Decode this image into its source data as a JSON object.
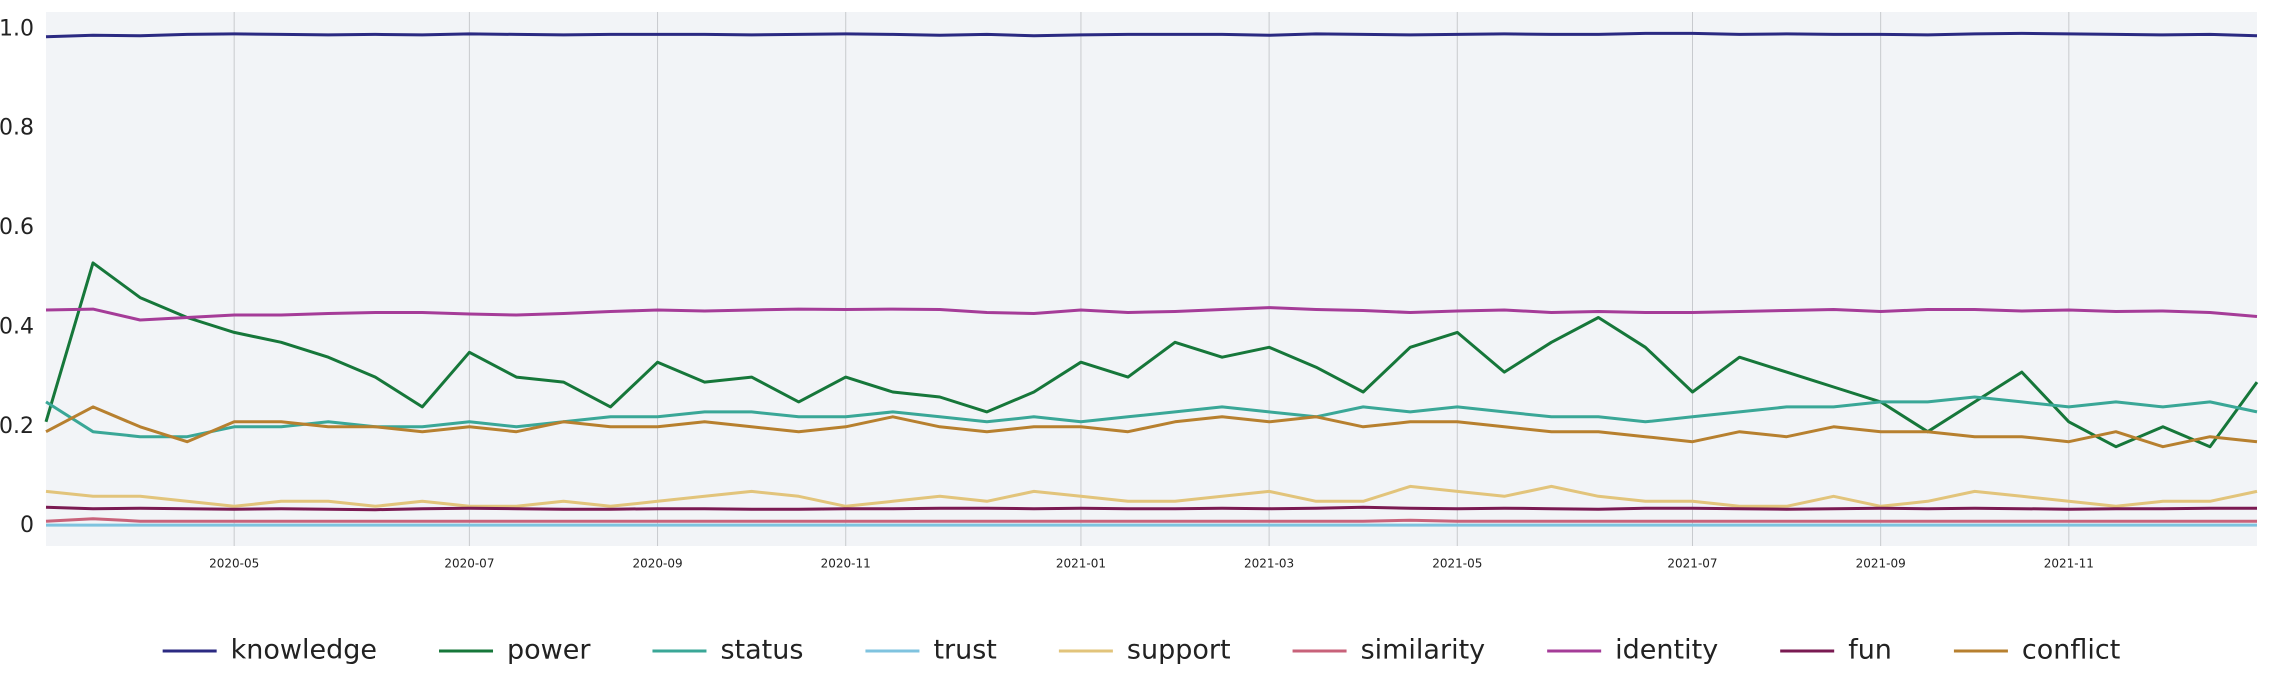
{
  "chart_data": {
    "type": "line",
    "categories": [
      null,
      null,
      null,
      null,
      "2020-05",
      null,
      null,
      null,
      null,
      "2020-07",
      null,
      null,
      null,
      "2020-09",
      null,
      null,
      null,
      "2020-11",
      null,
      null,
      null,
      null,
      "2021-01",
      null,
      null,
      null,
      "2021-03",
      null,
      null,
      null,
      "2021-05",
      null,
      null,
      null,
      null,
      "2021-07",
      null,
      null,
      null,
      "2021-09",
      null,
      null,
      null,
      "2021-11",
      null,
      null,
      null,
      null
    ],
    "ylim": [
      -0.04,
      1.035
    ],
    "yticks": [
      0,
      0.2,
      0.4,
      0.6,
      0.8,
      {
        "value": 1,
        "label": "1.0"
      }
    ],
    "grid": true,
    "legend": "bottom",
    "series": [
      {
        "name": "knowledge",
        "color": "#2b2a82",
        "values": [
          0.985,
          0.988,
          0.987,
          0.99,
          0.991,
          0.99,
          0.989,
          0.99,
          0.989,
          0.991,
          0.99,
          0.989,
          0.99,
          0.99,
          0.99,
          0.989,
          0.99,
          0.991,
          0.99,
          0.988,
          0.99,
          0.987,
          0.989,
          0.99,
          0.99,
          0.99,
          0.988,
          0.991,
          0.99,
          0.989,
          0.99,
          0.991,
          0.99,
          0.99,
          0.992,
          0.992,
          0.99,
          0.991,
          0.99,
          0.99,
          0.989,
          0.991,
          0.992,
          0.991,
          0.99,
          0.989,
          0.99,
          0.987
        ]
      },
      {
        "name": "power",
        "color": "#16773a",
        "values": [
          0.21,
          0.53,
          0.46,
          0.42,
          0.39,
          0.37,
          0.34,
          0.3,
          0.24,
          0.35,
          0.3,
          0.29,
          0.24,
          0.33,
          0.29,
          0.3,
          0.25,
          0.3,
          0.27,
          0.26,
          0.23,
          0.27,
          0.33,
          0.3,
          0.37,
          0.34,
          0.36,
          0.32,
          0.27,
          0.36,
          0.39,
          0.31,
          0.37,
          0.42,
          0.36,
          0.27,
          0.34,
          0.31,
          0.28,
          0.25,
          0.19,
          0.25,
          0.31,
          0.21,
          0.16,
          0.2,
          0.16,
          0.29
        ]
      },
      {
        "name": "status",
        "color": "#3aa797",
        "values": [
          0.25,
          0.19,
          0.18,
          0.18,
          0.2,
          0.2,
          0.21,
          0.2,
          0.2,
          0.21,
          0.2,
          0.21,
          0.22,
          0.22,
          0.23,
          0.23,
          0.22,
          0.22,
          0.23,
          0.22,
          0.21,
          0.22,
          0.21,
          0.22,
          0.23,
          0.24,
          0.23,
          0.22,
          0.24,
          0.23,
          0.24,
          0.23,
          0.22,
          0.22,
          0.21,
          0.22,
          0.23,
          0.24,
          0.24,
          0.25,
          0.25,
          0.26,
          0.25,
          0.24,
          0.25,
          0.24,
          0.25,
          0.23
        ]
      },
      {
        "name": "trust",
        "color": "#7fc3df",
        "values": [
          0.002,
          0.002,
          0.002,
          0.002,
          0.002,
          0.002,
          0.002,
          0.002,
          0.002,
          0.002,
          0.002,
          0.002,
          0.002,
          0.002,
          0.002,
          0.002,
          0.002,
          0.002,
          0.002,
          0.002,
          0.002,
          0.002,
          0.002,
          0.002,
          0.002,
          0.002,
          0.002,
          0.002,
          0.002,
          0.002,
          0.002,
          0.002,
          0.002,
          0.002,
          0.002,
          0.002,
          0.002,
          0.002,
          0.002,
          0.002,
          0.002,
          0.002,
          0.002,
          0.002,
          0.002,
          0.002,
          0.002,
          0.002
        ]
      },
      {
        "name": "support",
        "color": "#e2c47b",
        "values": [
          0.07,
          0.06,
          0.06,
          0.05,
          0.04,
          0.05,
          0.05,
          0.04,
          0.05,
          0.04,
          0.04,
          0.05,
          0.04,
          0.05,
          0.06,
          0.07,
          0.06,
          0.04,
          0.05,
          0.06,
          0.05,
          0.07,
          0.06,
          0.05,
          0.05,
          0.06,
          0.07,
          0.05,
          0.05,
          0.08,
          0.07,
          0.06,
          0.08,
          0.06,
          0.05,
          0.05,
          0.04,
          0.04,
          0.06,
          0.04,
          0.05,
          0.07,
          0.06,
          0.05,
          0.04,
          0.05,
          0.05,
          0.07
        ]
      },
      {
        "name": "similarity",
        "color": "#c8627a",
        "values": [
          0.01,
          0.015,
          0.01,
          0.01,
          0.01,
          0.01,
          0.01,
          0.01,
          0.01,
          0.01,
          0.01,
          0.01,
          0.01,
          0.01,
          0.01,
          0.01,
          0.01,
          0.01,
          0.01,
          0.01,
          0.01,
          0.01,
          0.01,
          0.01,
          0.01,
          0.01,
          0.01,
          0.01,
          0.01,
          0.012,
          0.01,
          0.01,
          0.01,
          0.01,
          0.01,
          0.01,
          0.01,
          0.01,
          0.01,
          0.01,
          0.01,
          0.01,
          0.01,
          0.01,
          0.01,
          0.01,
          0.01,
          0.01
        ]
      },
      {
        "name": "identity",
        "color": "#a53c98",
        "values": [
          0.435,
          0.437,
          0.415,
          0.42,
          0.425,
          0.425,
          0.428,
          0.43,
          0.43,
          0.427,
          0.425,
          0.428,
          0.432,
          0.435,
          0.433,
          0.435,
          0.437,
          0.436,
          0.437,
          0.436,
          0.43,
          0.428,
          0.435,
          0.43,
          0.432,
          0.436,
          0.44,
          0.436,
          0.434,
          0.43,
          0.433,
          0.435,
          0.43,
          0.432,
          0.43,
          0.43,
          0.432,
          0.434,
          0.436,
          0.432,
          0.436,
          0.436,
          0.433,
          0.435,
          0.432,
          0.433,
          0.43,
          0.422
        ]
      },
      {
        "name": "fun",
        "color": "#7a1a52",
        "values": [
          0.038,
          0.035,
          0.036,
          0.035,
          0.034,
          0.035,
          0.034,
          0.033,
          0.035,
          0.036,
          0.035,
          0.034,
          0.034,
          0.035,
          0.035,
          0.034,
          0.034,
          0.035,
          0.035,
          0.036,
          0.036,
          0.035,
          0.036,
          0.035,
          0.035,
          0.036,
          0.035,
          0.036,
          0.038,
          0.036,
          0.035,
          0.036,
          0.035,
          0.034,
          0.036,
          0.036,
          0.035,
          0.034,
          0.035,
          0.036,
          0.035,
          0.036,
          0.035,
          0.034,
          0.035,
          0.035,
          0.036,
          0.036
        ]
      },
      {
        "name": "conflict",
        "color": "#b7802f",
        "values": [
          0.19,
          0.24,
          0.2,
          0.17,
          0.21,
          0.21,
          0.2,
          0.2,
          0.19,
          0.2,
          0.19,
          0.21,
          0.2,
          0.2,
          0.21,
          0.2,
          0.19,
          0.2,
          0.22,
          0.2,
          0.19,
          0.2,
          0.2,
          0.19,
          0.21,
          0.22,
          0.21,
          0.22,
          0.2,
          0.21,
          0.21,
          0.2,
          0.19,
          0.19,
          0.18,
          0.17,
          0.19,
          0.18,
          0.2,
          0.19,
          0.19,
          0.18,
          0.18,
          0.17,
          0.19,
          0.16,
          0.18,
          0.17
        ]
      }
    ]
  }
}
